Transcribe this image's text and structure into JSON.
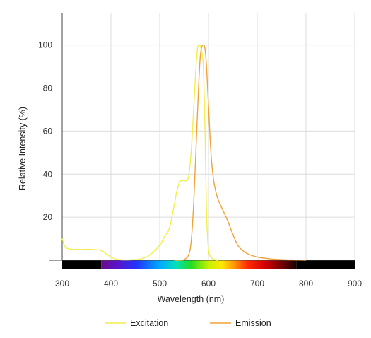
{
  "chart_data": {
    "type": "line",
    "title": "",
    "xlabel": "Wavelength (nm)",
    "ylabel": "Relative Intensity (%)",
    "xlim": [
      300,
      900
    ],
    "ylim": [
      0,
      115
    ],
    "x_ticks": [
      300,
      400,
      500,
      600,
      700,
      800,
      900
    ],
    "y_ticks": [
      20,
      40,
      60,
      80,
      100
    ],
    "grid": true,
    "legend_position": "bottom-center",
    "spectrum_bar": {
      "visible_range_nm": [
        380,
        780
      ]
    },
    "series": [
      {
        "name": "Excitation",
        "color": "#F2EE4A",
        "x": [
          300,
          305,
          310,
          320,
          340,
          360,
          380,
          390,
          400,
          410,
          420,
          440,
          460,
          480,
          500,
          510,
          520,
          530,
          535,
          540,
          545,
          555,
          560,
          565,
          570,
          575,
          578,
          581,
          584,
          587,
          590,
          593,
          596,
          600,
          605,
          610,
          620
        ],
        "y": [
          10,
          6.5,
          5.5,
          5,
          5,
          5,
          4.5,
          3,
          1.5,
          0.5,
          0.2,
          0.2,
          0.5,
          2.5,
          7,
          11,
          15,
          26,
          32,
          36,
          37,
          37,
          40,
          52,
          72,
          92,
          99,
          100,
          99,
          96,
          88,
          60,
          22,
          5,
          1.5,
          0.5,
          0
        ]
      },
      {
        "name": "Emission",
        "color": "#F0A33C",
        "x": [
          530,
          550,
          560,
          565,
          570,
          575,
          580,
          583,
          586,
          590,
          593,
          596,
          600,
          605,
          610,
          615,
          620,
          630,
          640,
          650,
          660,
          670,
          680,
          700,
          720,
          740,
          760,
          780,
          800
        ],
        "y": [
          0,
          0.3,
          3,
          10,
          28,
          55,
          82,
          94,
          99,
          100,
          98,
          90,
          72,
          50,
          38,
          32,
          28,
          23,
          18,
          12,
          7,
          4.5,
          3,
          1.5,
          0.8,
          0.4,
          0.2,
          0.1,
          0
        ]
      }
    ]
  }
}
